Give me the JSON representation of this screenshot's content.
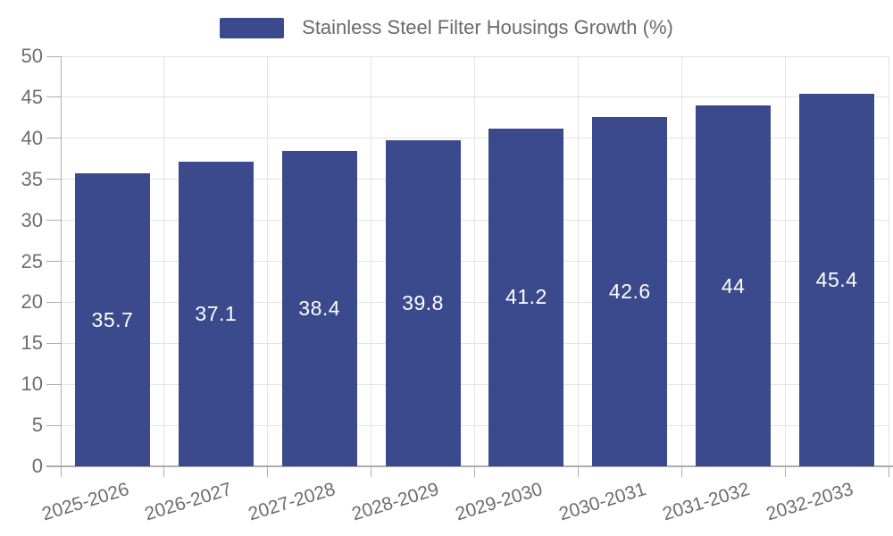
{
  "chart_data": {
    "type": "bar",
    "title": "",
    "legend": {
      "label": "Stainless Steel Filter Housings Growth (%)",
      "position": "top-center"
    },
    "categories": [
      "2025-2026",
      "2026-2027",
      "2027-2028",
      "2028-2029",
      "2029-2030",
      "2030-2031",
      "2031-2032",
      "2032-2033"
    ],
    "series": [
      {
        "name": "Stainless Steel Filter Housings Growth (%)",
        "values": [
          35.7,
          37.1,
          38.4,
          39.8,
          41.2,
          42.6,
          44,
          45.4
        ],
        "value_labels": [
          "35.7",
          "37.1",
          "38.4",
          "39.8",
          "41.2",
          "42.6",
          "44",
          "45.4"
        ]
      }
    ],
    "xlabel": "",
    "ylabel": "",
    "ylim": [
      0,
      50
    ],
    "yticks": [
      0,
      5,
      10,
      15,
      20,
      25,
      30,
      35,
      40,
      45,
      50
    ],
    "grid": true,
    "colors": {
      "bar": "#3A4A8C",
      "grid_line": "#E3E3E3",
      "axis_line": "#ADADAD",
      "tick_label": "#6E6E6E",
      "value_label": "#FFFFFF",
      "background": "#FFFFFF"
    }
  }
}
